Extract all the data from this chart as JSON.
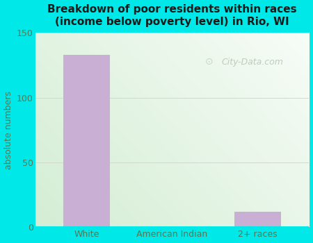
{
  "categories": [
    "White",
    "American Indian",
    "2+ races"
  ],
  "values": [
    133,
    0,
    12
  ],
  "bar_color": "#c9afd4",
  "title_line1": "Breakdown of poor residents within races",
  "title_line2": "(income below poverty level) in Rio, WI",
  "ylabel": "absolute numbers",
  "ylim": [
    0,
    150
  ],
  "yticks": [
    0,
    50,
    100,
    150
  ],
  "figure_bg": "#00e8e8",
  "plot_bg_left": "#d6ead6",
  "plot_bg_right": "#f5fbf5",
  "grid_color": "#d0d8d0",
  "title_color": "#1a1a1a",
  "tick_label_color": "#557755",
  "ylabel_color": "#557755",
  "xtick_label_color": "#557755",
  "watermark": "City-Data.com",
  "watermark_color": "#b8c8b8",
  "bar_width": 0.55
}
